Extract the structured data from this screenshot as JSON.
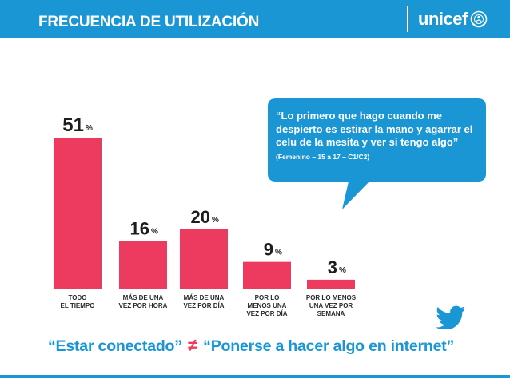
{
  "header": {
    "title": "FRECUENCIA DE UTILIZACIÓN",
    "logo_text": "unicef",
    "background_color": "#1a96d4"
  },
  "chart_data": {
    "type": "bar",
    "categories": [
      [
        "TODO",
        "EL TIEMPO"
      ],
      [
        "MÁS DE UNA",
        "VEZ POR HORA"
      ],
      [
        "MÁS DE UNA",
        "VEZ POR DÍA"
      ],
      [
        "POR LO",
        "MENOS UNA",
        "VEZ POR DÍA"
      ],
      [
        "POR LO MENOS",
        "UNA VEZ POR",
        "SEMANA"
      ]
    ],
    "values": [
      51,
      16,
      20,
      9,
      3
    ],
    "value_suffix": "%",
    "bar_color": "#ec3b5e",
    "ylim": [
      0,
      51
    ]
  },
  "quote_bubble": {
    "text": "“Lo primero que hago cuando me despierto es estirar la mano y agarrar el celu de la mesita y ver si tengo algo”",
    "attribution": "(Femenino – 15 a 17 – C1/C2)",
    "background_color": "#1a96d4"
  },
  "twitter_icon": "twitter-bird-icon",
  "bottom_quote": {
    "left": "“Estar conectado”",
    "symbol": "≠",
    "right": "“Ponerse a hacer algo en internet”"
  }
}
